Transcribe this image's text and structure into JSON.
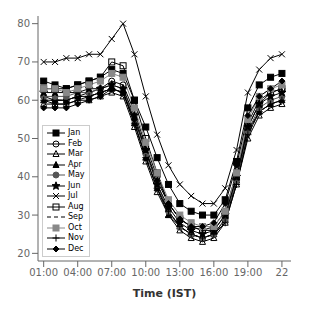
{
  "chart_data": {
    "type": "line",
    "x_label": "Time (IST)",
    "x": [
      1,
      2,
      3,
      4,
      5,
      6,
      7,
      8,
      9,
      10,
      11,
      12,
      13,
      14,
      15,
      16,
      17,
      18,
      19,
      20,
      21,
      22
    ],
    "xlim": [
      0.5,
      22.8
    ],
    "xticks": [
      {
        "value": 1,
        "label": "01:00"
      },
      {
        "value": 4,
        "label": "04:00"
      },
      {
        "value": 7,
        "label": "07:00"
      },
      {
        "value": 10,
        "label": "10:00"
      },
      {
        "value": 13,
        "label": "13:00"
      },
      {
        "value": 16,
        "label": "16:00"
      },
      {
        "value": 19,
        "label": "19:00"
      },
      22
    ],
    "ylim": [
      18,
      82
    ],
    "yticks": [
      20,
      30,
      40,
      50,
      60,
      70,
      80
    ],
    "grid": false,
    "legend": "lower left",
    "series": [
      {
        "name": "Jan",
        "color": "#000000",
        "marker": "square",
        "line_style": "solid",
        "values": [
          65,
          64,
          63,
          64,
          65,
          66,
          68,
          67,
          60,
          53,
          45,
          38,
          33,
          31,
          30,
          30,
          34,
          44,
          58,
          64,
          66,
          67
        ]
      },
      {
        "name": "Feb",
        "color": "#000000",
        "marker": "open-circle",
        "line_style": "solid",
        "values": [
          61,
          60,
          60,
          61,
          62,
          63,
          65,
          64,
          57,
          48,
          40,
          33,
          29,
          27,
          26,
          27,
          31,
          41,
          54,
          60,
          62,
          63
        ]
      },
      {
        "name": "Mar",
        "color": "#000000",
        "marker": "open-triangle",
        "line_style": "solid",
        "values": [
          59,
          59,
          59,
          60,
          60,
          61,
          62,
          61,
          53,
          44,
          36,
          30,
          26,
          24,
          23,
          24,
          28,
          38,
          50,
          56,
          58,
          59
        ]
      },
      {
        "name": "Apr",
        "color": "#000000",
        "marker": "triangle",
        "line_style": "solid",
        "values": [
          60,
          60,
          60,
          61,
          61,
          62,
          63,
          62,
          54,
          45,
          37,
          30,
          27,
          25,
          24,
          25,
          29,
          39,
          52,
          57,
          59,
          60
        ]
      },
      {
        "name": "May",
        "color": "#555555",
        "marker": "circle",
        "line_style": "solid",
        "values": [
          61,
          61,
          61,
          62,
          62,
          63,
          64,
          63,
          55,
          46,
          38,
          31,
          27,
          25,
          24,
          25,
          29,
          39,
          52,
          58,
          60,
          61
        ]
      },
      {
        "name": "Jun",
        "color": "#000000",
        "marker": "star",
        "line_style": "solid",
        "values": [
          62,
          62,
          62,
          62,
          63,
          63,
          64,
          63,
          56,
          47,
          38,
          32,
          28,
          26,
          25,
          26,
          30,
          40,
          53,
          59,
          61,
          62
        ]
      },
      {
        "name": "Jul",
        "color": "#000000",
        "marker": "x",
        "line_style": "solid",
        "values": [
          70,
          70,
          71,
          71,
          72,
          72,
          76,
          80,
          72,
          61,
          51,
          43,
          38,
          35,
          33,
          33,
          37,
          47,
          62,
          68,
          71,
          72
        ]
      },
      {
        "name": "Aug",
        "color": "#000000",
        "marker": "open-square",
        "line_style": "solid",
        "values": [
          63,
          63,
          63,
          64,
          65,
          66,
          70,
          69,
          60,
          50,
          41,
          33,
          29,
          27,
          26,
          26,
          30,
          40,
          53,
          59,
          62,
          63
        ]
      },
      {
        "name": "Sep",
        "color": "#000000",
        "marker": "none",
        "line_style": "dashed",
        "values": [
          60,
          60,
          60,
          61,
          61,
          62,
          63,
          62,
          54,
          45,
          37,
          31,
          27,
          25,
          24,
          25,
          29,
          38,
          51,
          57,
          59,
          60
        ]
      },
      {
        "name": "Oct",
        "color": "#888888",
        "marker": "square",
        "line_style": "solid",
        "values": [
          63,
          63,
          62,
          63,
          64,
          65,
          67,
          66,
          58,
          49,
          41,
          34,
          30,
          28,
          27,
          27,
          31,
          41,
          55,
          61,
          63,
          64
        ]
      },
      {
        "name": "Nov",
        "color": "#000000",
        "marker": "plus",
        "line_style": "solid",
        "values": [
          60,
          59,
          59,
          60,
          61,
          62,
          63,
          62,
          54,
          45,
          37,
          31,
          27,
          25,
          24,
          25,
          28,
          38,
          51,
          57,
          59,
          60
        ]
      },
      {
        "name": "Dec",
        "color": "#000000",
        "marker": "diamond",
        "line_style": "solid",
        "values": [
          58,
          58,
          58,
          59,
          60,
          61,
          63,
          62,
          55,
          47,
          39,
          33,
          29,
          27,
          27,
          28,
          33,
          43,
          56,
          61,
          63,
          65
        ]
      }
    ]
  }
}
